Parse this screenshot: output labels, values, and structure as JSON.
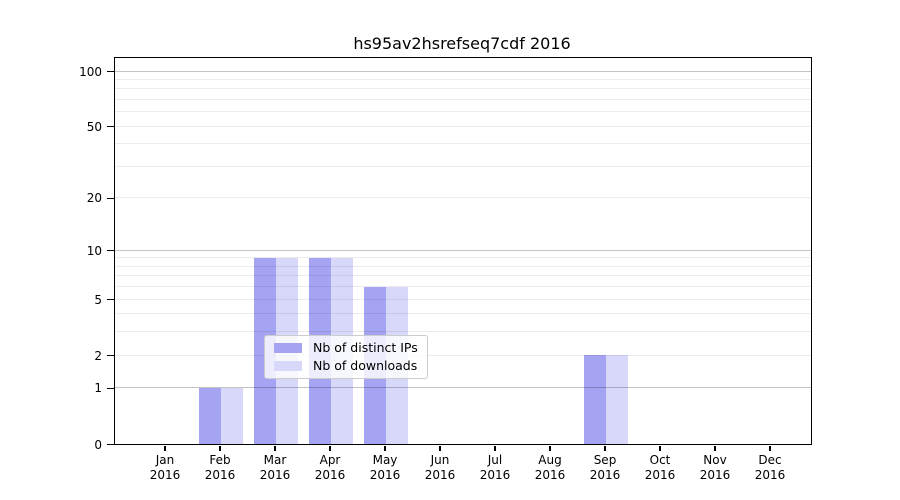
{
  "title": "hs95av2hsrefseq7cdf 2016",
  "chart_data": {
    "type": "bar",
    "title": "hs95av2hsrefseq7cdf 2016",
    "categories": [
      "Jan 2016",
      "Feb 2016",
      "Mar 2016",
      "Apr 2016",
      "May 2016",
      "Jun 2016",
      "Jul 2016",
      "Aug 2016",
      "Sep 2016",
      "Oct 2016",
      "Nov 2016",
      "Dec 2016"
    ],
    "series": [
      {
        "name": "Nb of distinct IPs",
        "color": "#a4a4f3",
        "values": [
          0,
          1,
          9,
          9,
          6,
          0,
          0,
          0,
          2,
          0,
          0,
          0
        ]
      },
      {
        "name": "Nb of downloads",
        "color": "#d8d8fa",
        "values": [
          0,
          1,
          9,
          9,
          6,
          0,
          0,
          0,
          2,
          0,
          0,
          0
        ]
      }
    ],
    "xlabel": "",
    "ylabel": "",
    "yscale": "log1p",
    "ylim": [
      0,
      117
    ],
    "y_ticks": [
      0,
      1,
      2,
      5,
      10,
      20,
      50,
      100
    ],
    "gridlines": {
      "major_values": [
        1,
        10,
        100
      ],
      "minor_values": [
        2,
        3,
        4,
        5,
        6,
        7,
        8,
        9,
        20,
        30,
        40,
        50,
        60,
        70,
        80,
        90
      ],
      "major_color": "rgba(0,0,0,0.23)",
      "minor_color": "rgba(0,0,0,0.075)"
    },
    "legend_position": "inside-lower-center",
    "grid": true
  },
  "colors": {
    "background": "#ffffff",
    "frame": "#000000",
    "text": "#000000"
  }
}
